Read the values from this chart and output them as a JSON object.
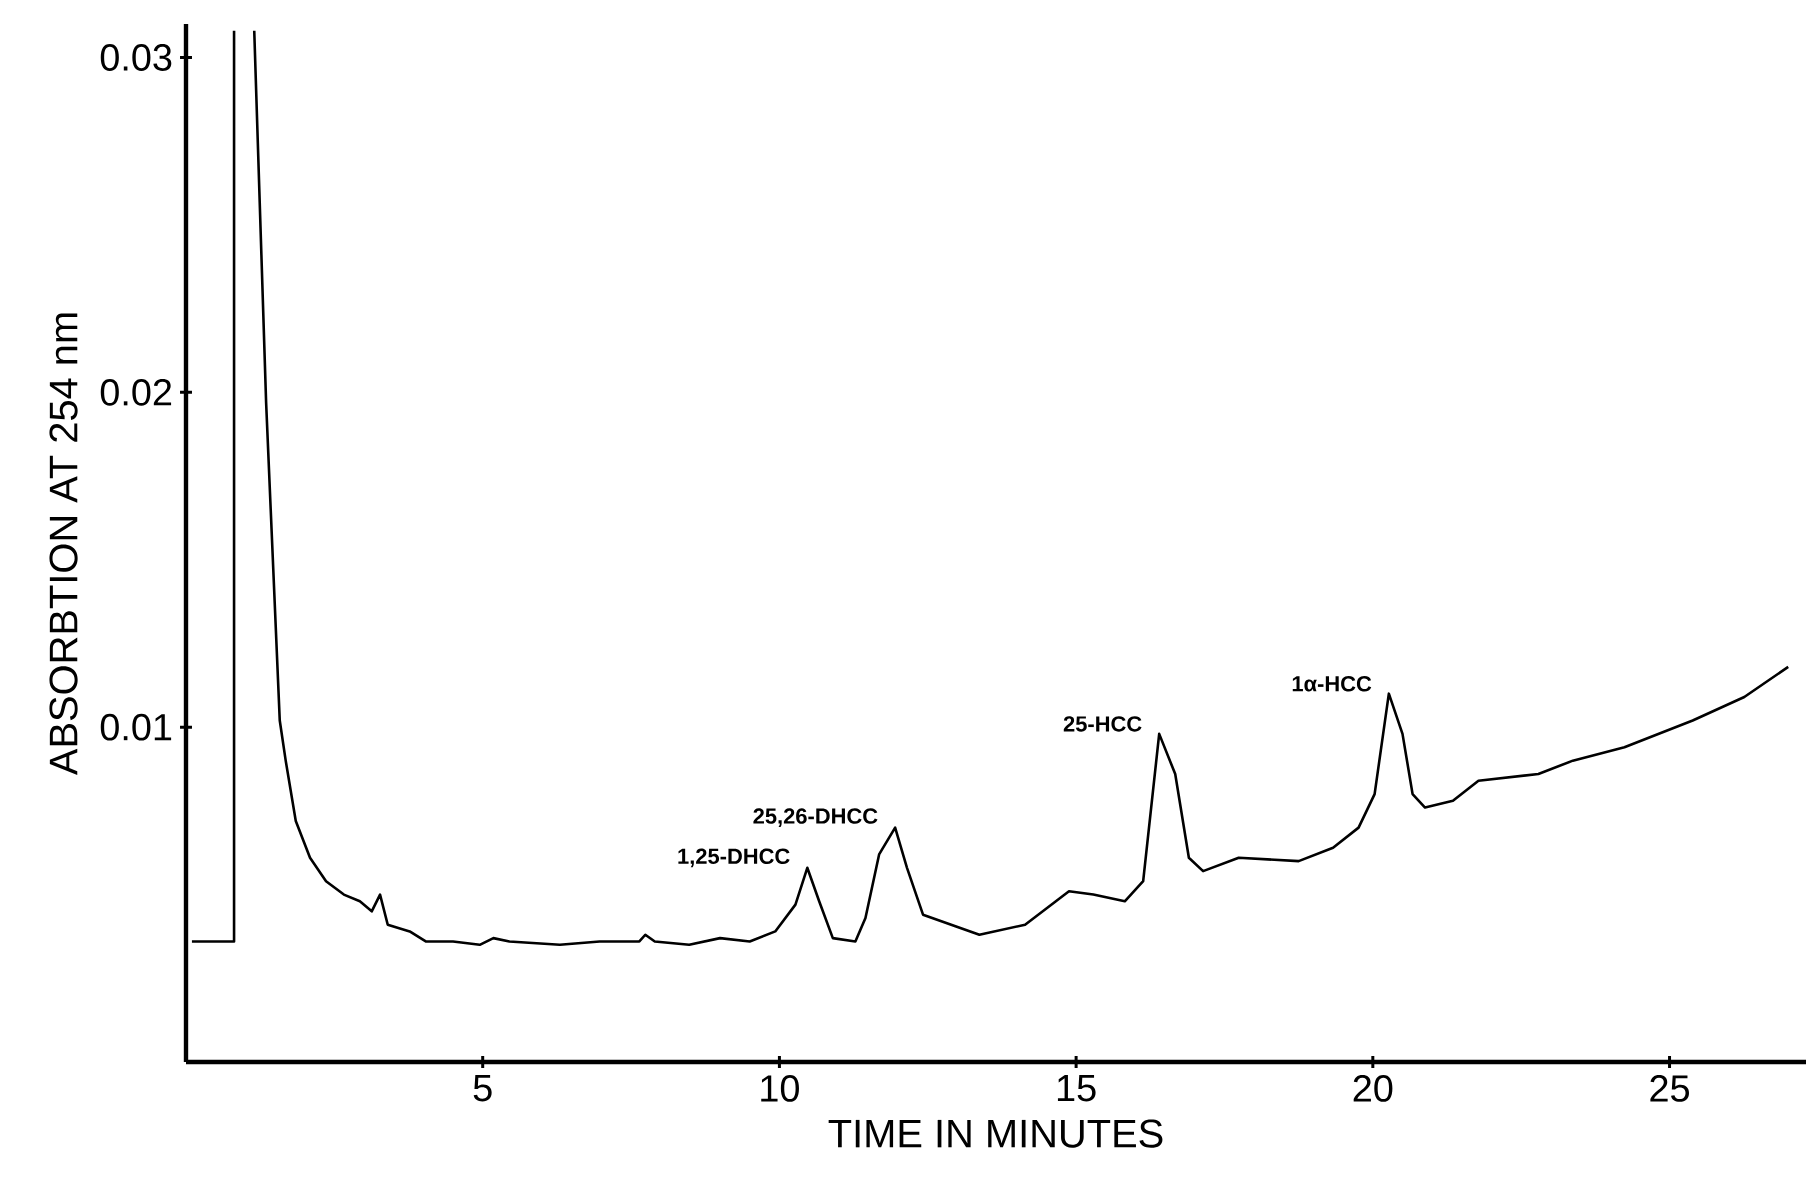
{
  "chart_data": {
    "type": "line",
    "xlabel": "TIME IN MINUTES",
    "ylabel": "ABSORBTION AT 254 nm",
    "color": "#000000",
    "x": [
      0.1,
      0.81,
      0.81,
      0.95,
      1.15,
      1.35,
      1.58,
      1.68,
      1.85,
      2.09,
      2.36,
      2.66,
      2.93,
      3.13,
      3.27,
      3.4,
      3.77,
      4.04,
      4.5,
      4.95,
      5.18,
      5.45,
      6.3,
      6.97,
      7.64,
      7.74,
      7.9,
      8.48,
      9.0,
      9.5,
      9.93,
      10.27,
      10.47,
      10.67,
      10.9,
      11.28,
      11.45,
      11.68,
      11.95,
      12.15,
      12.42,
      13.37,
      14.14,
      14.88,
      15.29,
      15.82,
      16.13,
      16.4,
      16.67,
      16.9,
      17.14,
      17.74,
      18.75,
      19.33,
      19.76,
      20.03,
      20.27,
      20.5,
      20.67,
      20.88,
      21.35,
      21.78,
      22.79,
      23.37,
      24.24,
      25.39,
      26.26,
      27.0
    ],
    "values": [
      0.0036,
      0.0036,
      0.0308,
      null,
      0.0308,
      0.0197,
      0.0102,
      0.009,
      0.0072,
      0.0061,
      0.0054,
      0.005,
      0.0048,
      0.0045,
      0.005,
      0.0041,
      0.0039,
      0.0036,
      0.0036,
      0.0035,
      0.0037,
      0.0036,
      0.0035,
      0.0036,
      0.0036,
      0.0038,
      0.0036,
      0.0035,
      0.0037,
      0.0036,
      0.0039,
      0.0047,
      0.0058,
      0.0048,
      0.0037,
      0.0036,
      0.0043,
      0.0062,
      0.007,
      0.0058,
      0.0044,
      0.0038,
      0.0041,
      0.0051,
      0.005,
      0.0048,
      0.0054,
      0.0098,
      0.0086,
      0.0061,
      0.0057,
      0.0061,
      0.006,
      0.0064,
      0.007,
      0.008,
      0.011,
      0.0098,
      0.008,
      0.0076,
      0.0078,
      0.0084,
      0.0086,
      0.009,
      0.0094,
      0.0102,
      0.0109,
      0.0118
    ],
    "xlim": [
      0,
      27.3
    ],
    "ylim": [
      0,
      0.031
    ],
    "xticks": [
      5,
      10,
      15,
      20,
      25
    ],
    "yticks": [
      0.01,
      0.02,
      0.03
    ],
    "annotations": [
      {
        "text": "1,25-DHCC",
        "x": 10.47,
        "y": 0.0058
      },
      {
        "text": "25,26-DHCC",
        "x": 11.95,
        "y": 0.007
      },
      {
        "text": "25-HCC",
        "x": 16.4,
        "y": 0.0098
      },
      {
        "text": "1α-HCC",
        "x": 20.27,
        "y": 0.011
      }
    ]
  }
}
